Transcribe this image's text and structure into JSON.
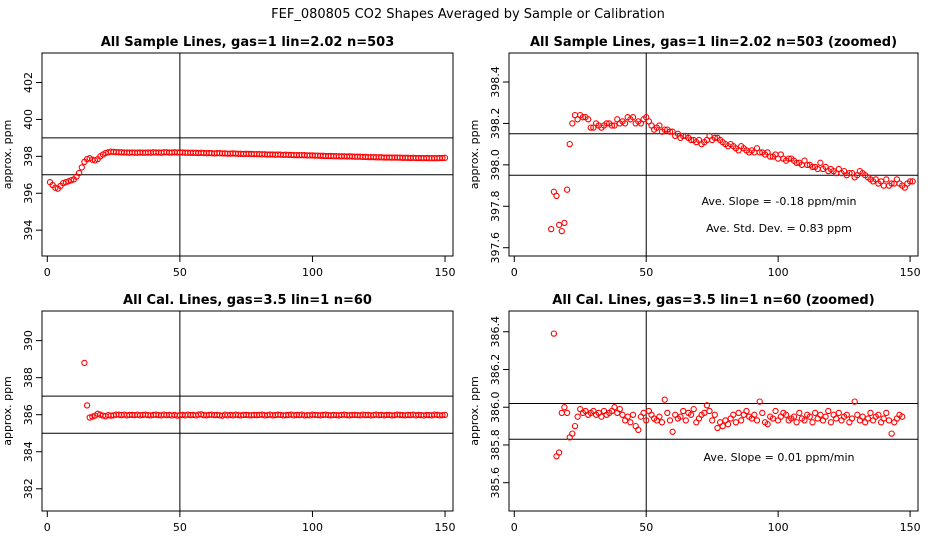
{
  "figure": {
    "title": "FEF_080805  CO2 Shapes Averaged by Sample or Calibration"
  },
  "colors": {
    "point": "#ff0000",
    "axis": "#000000",
    "background": "#ffffff"
  },
  "chart_data": [
    {
      "id": "p1",
      "type": "scatter",
      "title": "All Sample Lines, gas=1 lin=2.02 n=503",
      "ylabel": "approx. ppm",
      "xlim": [
        -2,
        153
      ],
      "ylim": [
        392.6,
        403.6
      ],
      "xticks": [
        "0",
        "50",
        "100",
        "150"
      ],
      "yticks": [
        "394",
        "396",
        "398",
        "400",
        "402"
      ],
      "hlines": [
        397.0,
        399.0
      ],
      "vlines": [
        50
      ],
      "series": {
        "x_start": 1,
        "x_step": 1,
        "y": [
          396.6,
          396.45,
          396.3,
          396.25,
          396.4,
          396.55,
          396.6,
          396.65,
          396.7,
          396.75,
          396.9,
          397.1,
          397.4,
          397.7,
          397.85,
          397.9,
          397.82,
          397.78,
          397.85,
          398.0,
          398.1,
          398.18,
          398.22,
          398.25,
          398.24,
          398.23,
          398.22,
          398.22,
          398.21,
          398.21,
          398.2,
          398.21,
          398.2,
          398.2,
          398.21,
          398.2,
          398.2,
          398.21,
          398.2,
          398.22,
          398.21,
          398.21,
          398.2,
          398.22,
          398.22,
          398.21,
          398.21,
          398.22,
          398.21,
          398.22,
          398.21,
          398.2,
          398.2,
          398.19,
          398.19,
          398.19,
          398.18,
          398.19,
          398.18,
          398.17,
          398.18,
          398.17,
          398.16,
          398.17,
          398.17,
          398.16,
          398.16,
          398.15,
          398.15,
          398.16,
          398.15,
          398.14,
          398.14,
          398.13,
          398.14,
          398.13,
          398.13,
          398.12,
          398.12,
          398.12,
          398.11,
          398.11,
          398.1,
          398.1,
          398.1,
          398.09,
          398.1,
          398.09,
          398.08,
          398.09,
          398.08,
          398.08,
          398.07,
          398.07,
          398.06,
          398.07,
          398.06,
          398.05,
          398.05,
          398.05,
          398.04,
          398.04,
          398.03,
          398.03,
          398.02,
          398.02,
          398.02,
          398.01,
          398.01,
          398.0,
          398.0,
          398.0,
          397.99,
          398.0,
          397.99,
          397.98,
          397.98,
          397.98,
          397.97,
          397.97,
          397.96,
          397.96,
          397.96,
          397.95,
          397.95,
          397.95,
          397.94,
          397.94,
          397.94,
          397.93,
          397.94,
          397.93,
          397.93,
          397.92,
          397.92,
          397.92,
          397.91,
          397.92,
          397.91,
          397.91,
          397.91,
          397.9,
          397.91,
          397.9,
          397.9,
          397.9,
          397.9,
          397.91,
          397.91,
          397.92
        ]
      },
      "annotations": []
    },
    {
      "id": "p2",
      "type": "scatter",
      "title": "All Sample Lines, gas=1 lin=2.02 n=503 (zoomed)",
      "ylabel": "approx. ppm",
      "xlim": [
        -2,
        153
      ],
      "ylim": [
        397.56,
        398.54
      ],
      "xticks": [
        "0",
        "50",
        "100",
        "150"
      ],
      "yticks": [
        "397.6",
        "397.8",
        "398.0",
        "398.2",
        "398.4"
      ],
      "hlines": [
        398.15,
        397.95
      ],
      "vlines": [
        50
      ],
      "series": {
        "x_start": 14,
        "x_step": 1,
        "y": [
          397.69,
          397.87,
          397.85,
          397.71,
          397.68,
          397.72,
          397.88,
          398.1,
          398.2,
          398.24,
          398.22,
          398.24,
          398.23,
          398.23,
          398.22,
          398.18,
          398.18,
          398.2,
          398.19,
          398.18,
          398.19,
          398.2,
          398.2,
          398.19,
          398.19,
          398.22,
          398.2,
          398.21,
          398.2,
          398.23,
          398.22,
          398.23,
          398.2,
          398.21,
          398.2,
          398.22,
          398.23,
          398.21,
          398.19,
          398.17,
          398.18,
          398.19,
          398.16,
          398.17,
          398.17,
          398.16,
          398.16,
          398.14,
          398.15,
          398.13,
          398.14,
          398.14,
          398.13,
          398.12,
          398.12,
          398.11,
          398.12,
          398.1,
          398.11,
          398.12,
          398.14,
          398.12,
          398.13,
          398.13,
          398.12,
          398.11,
          398.1,
          398.09,
          398.1,
          398.09,
          398.08,
          398.07,
          398.09,
          398.08,
          398.07,
          398.06,
          398.07,
          398.06,
          398.08,
          398.06,
          398.06,
          398.05,
          398.06,
          398.04,
          398.04,
          398.05,
          398.03,
          398.05,
          398.03,
          398.02,
          398.03,
          398.03,
          398.02,
          398.01,
          398.01,
          398.0,
          398.02,
          398.0,
          398.0,
          397.99,
          397.99,
          397.98,
          398.01,
          397.98,
          397.99,
          397.97,
          397.98,
          397.97,
          397.96,
          397.98,
          397.96,
          397.97,
          397.95,
          397.96,
          397.96,
          397.94,
          397.95,
          397.97,
          397.96,
          397.95,
          397.94,
          397.93,
          397.92,
          397.93,
          397.91,
          397.92,
          397.9,
          397.93,
          397.9,
          397.91,
          397.91,
          397.93,
          397.91,
          397.9,
          397.89,
          397.91,
          397.92,
          397.92
        ]
      },
      "annotations": [
        "Ave. Slope =  -0.18  ppm/min",
        "Ave. Std. Dev. =  0.83  ppm"
      ]
    },
    {
      "id": "p3",
      "type": "scatter",
      "title": "All Cal. Lines, gas=3.5 lin=1 n=60",
      "ylabel": "approx. ppm",
      "xlim": [
        -2,
        153
      ],
      "ylim": [
        380.8,
        391.6
      ],
      "xticks": [
        "0",
        "50",
        "100",
        "150"
      ],
      "yticks": [
        "382",
        "384",
        "386",
        "388",
        "390"
      ],
      "hlines": [
        387.0,
        385.0
      ],
      "vlines": [
        50
      ],
      "series": {
        "x_start": 14,
        "x_step": 1,
        "y": [
          388.8,
          386.5,
          385.85,
          385.9,
          385.95,
          386.05,
          386.0,
          385.95,
          385.92,
          385.98,
          385.95,
          385.97,
          386.0,
          386.0,
          385.98,
          386.0,
          385.97,
          385.99,
          385.99,
          385.98,
          386.0,
          385.97,
          385.99,
          386.0,
          385.98,
          385.96,
          385.99,
          386.0,
          385.98,
          385.97,
          386.0,
          385.98,
          385.99,
          385.96,
          385.99,
          385.95,
          385.98,
          385.99,
          385.97,
          386.0,
          385.98,
          385.99,
          385.96,
          386.0,
          386.02,
          385.98,
          385.97,
          385.99,
          386.0,
          385.98,
          385.99,
          385.97,
          385.95,
          386.0,
          385.97,
          385.99,
          385.97,
          386.0,
          385.98,
          385.96,
          385.99,
          385.99,
          385.98,
          385.97,
          385.99,
          385.98,
          385.99,
          386.0,
          385.97,
          385.98,
          386.0,
          385.97,
          385.98,
          386.0,
          385.99,
          385.96,
          385.98,
          385.99,
          386.0,
          385.97,
          385.99,
          385.98,
          386.0,
          385.96,
          385.98,
          385.97,
          386.0,
          385.99,
          385.98,
          385.97,
          385.99,
          386.0,
          385.98,
          385.97,
          385.99,
          385.98,
          385.97,
          385.99,
          386.0,
          385.98,
          385.97,
          385.99,
          385.99,
          385.98,
          385.97,
          386.0,
          385.98,
          385.99,
          385.97,
          385.98,
          386.0,
          385.98,
          385.99,
          385.97,
          385.99,
          385.99,
          385.96,
          385.98,
          386.0,
          385.99,
          385.98,
          385.97,
          385.99,
          385.98,
          386.0,
          385.97,
          385.99,
          385.98,
          385.96,
          385.99,
          385.98,
          385.97,
          386.0,
          385.99,
          385.97,
          385.98,
          385.99
        ]
      },
      "annotations": []
    },
    {
      "id": "p4",
      "type": "scatter",
      "title": "All Cal. Lines, gas=3.5 lin=1 n=60 (zoomed)",
      "ylabel": "approx. ppm",
      "xlim": [
        -2,
        153
      ],
      "ylim": [
        385.45,
        386.51
      ],
      "xticks": [
        "0",
        "50",
        "100",
        "150"
      ],
      "yticks": [
        "385.6",
        "385.8",
        "386.0",
        "386.2",
        "386.4"
      ],
      "hlines": [
        386.02,
        385.83
      ],
      "vlines": [
        50
      ],
      "series": {
        "x_start": 15,
        "x_step": 1,
        "y": [
          386.39,
          385.74,
          385.76,
          385.97,
          386.0,
          385.97,
          385.84,
          385.86,
          385.9,
          385.95,
          385.99,
          385.97,
          385.98,
          385.96,
          385.97,
          385.98,
          385.96,
          385.97,
          385.95,
          385.98,
          385.96,
          385.97,
          385.98,
          386.0,
          385.97,
          385.99,
          385.96,
          385.93,
          385.95,
          385.92,
          385.96,
          385.9,
          385.88,
          385.95,
          385.97,
          385.93,
          385.98,
          385.96,
          385.94,
          385.93,
          385.95,
          385.92,
          386.04,
          385.97,
          385.93,
          385.87,
          385.96,
          385.94,
          385.95,
          385.98,
          385.93,
          385.97,
          385.96,
          385.99,
          385.92,
          385.94,
          385.96,
          385.97,
          386.01,
          385.98,
          385.93,
          385.96,
          385.89,
          385.92,
          385.9,
          385.93,
          385.91,
          385.94,
          385.96,
          385.92,
          385.97,
          385.93,
          385.96,
          385.98,
          385.95,
          385.94,
          385.96,
          385.93,
          386.03,
          385.97,
          385.92,
          385.91,
          385.95,
          385.94,
          385.98,
          385.93,
          385.95,
          385.97,
          385.96,
          385.93,
          385.94,
          385.95,
          385.92,
          385.97,
          385.94,
          385.93,
          385.96,
          385.95,
          385.92,
          385.97,
          385.94,
          385.96,
          385.93,
          385.95,
          385.98,
          385.92,
          385.96,
          385.94,
          385.97,
          385.93,
          385.95,
          385.96,
          385.92,
          385.94,
          386.03,
          385.96,
          385.93,
          385.95,
          385.92,
          385.94,
          385.97,
          385.93,
          385.95,
          385.96,
          385.92,
          385.94,
          385.97,
          385.93,
          385.86,
          385.92,
          385.94,
          385.96,
          385.95
        ]
      },
      "annotations": [
        "Ave. Slope =  0.01  ppm/min"
      ]
    }
  ]
}
